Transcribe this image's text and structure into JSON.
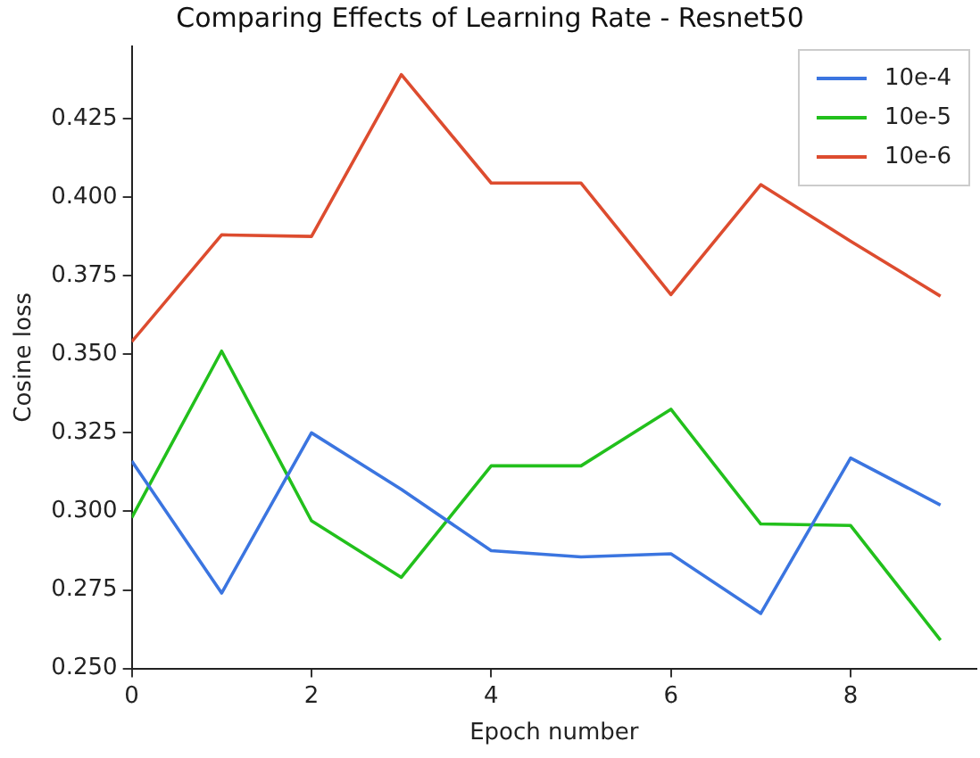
{
  "chart_data": {
    "type": "line",
    "title": "Comparing Effects of Learning Rate - Resnet50",
    "xlabel": "Epoch number",
    "ylabel": "Cosine loss",
    "x": [
      0,
      1,
      2,
      3,
      4,
      5,
      6,
      7,
      8,
      9
    ],
    "series": [
      {
        "name": "10e-4",
        "color": "#3b75e0",
        "values": [
          0.316,
          0.274,
          0.325,
          0.307,
          0.2875,
          0.2855,
          0.2865,
          0.2675,
          0.317,
          0.302
        ]
      },
      {
        "name": "10e-5",
        "color": "#22c01c",
        "values": [
          0.298,
          0.351,
          0.297,
          0.279,
          0.3145,
          0.3145,
          0.3325,
          0.296,
          0.2955,
          0.259
        ]
      },
      {
        "name": "10e-6",
        "color": "#dd4c2f",
        "values": [
          0.354,
          0.388,
          0.3875,
          0.439,
          0.4045,
          0.4045,
          0.369,
          0.404,
          0.386,
          0.3685
        ]
      }
    ],
    "xlim": [
      0,
      9.4
    ],
    "xticks": [
      0,
      2,
      4,
      6,
      8
    ],
    "ylim": [
      0.25,
      0.448
    ],
    "yticks": [
      {
        "value": 0.25,
        "label": "0.250"
      },
      {
        "value": 0.275,
        "label": "0.275"
      },
      {
        "value": 0.3,
        "label": "0.300"
      },
      {
        "value": 0.325,
        "label": "0.325"
      },
      {
        "value": 0.35,
        "label": "0.350"
      },
      {
        "value": 0.375,
        "label": "0.375"
      },
      {
        "value": 0.4,
        "label": "0.400"
      },
      {
        "value": 0.425,
        "label": "0.425"
      }
    ],
    "grid": false,
    "legend": "top right",
    "marker": "none",
    "line_style": "solid"
  }
}
